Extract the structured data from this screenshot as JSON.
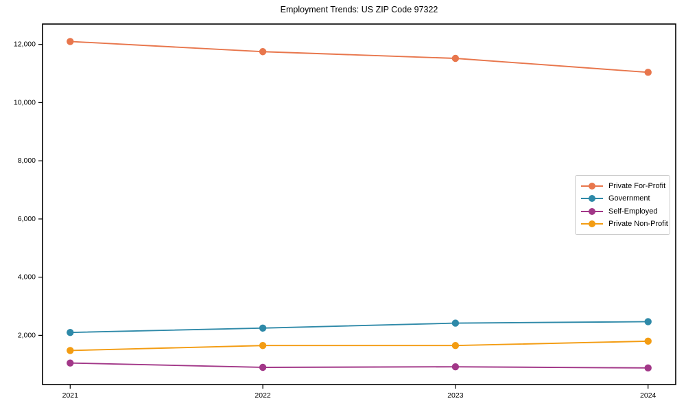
{
  "title": "Employment Trends: US ZIP Code 97322",
  "chart_data": {
    "type": "line",
    "title": "Employment Trends: US ZIP Code 97322",
    "xlabel": "",
    "ylabel": "",
    "x": [
      2021,
      2022,
      2023,
      2024
    ],
    "x_labels": [
      "2021",
      "2022",
      "2023",
      "2024"
    ],
    "series": [
      {
        "name": "Private For-Profit",
        "color": "#E8764C",
        "values": [
          12100,
          11750,
          11520,
          11040
        ]
      },
      {
        "name": "Government",
        "color": "#2E89A8",
        "values": [
          2100,
          2250,
          2420,
          2470
        ]
      },
      {
        "name": "Self-Employed",
        "color": "#A23788",
        "values": [
          1050,
          900,
          920,
          880
        ]
      },
      {
        "name": "Private Non-Profit",
        "color": "#F39C12",
        "values": [
          1480,
          1650,
          1650,
          1800
        ]
      }
    ],
    "ylim": [
      310,
      12700
    ],
    "yticks": [
      2000,
      4000,
      6000,
      8000,
      10000,
      12000
    ],
    "ytick_labels": [
      "2,000",
      "4,000",
      "6,000",
      "8,000",
      "10,000",
      "12,000"
    ],
    "grid": false,
    "legend_position": "center-right",
    "marker": "circle",
    "axis_color": "#000000",
    "text_color": "#000000"
  }
}
